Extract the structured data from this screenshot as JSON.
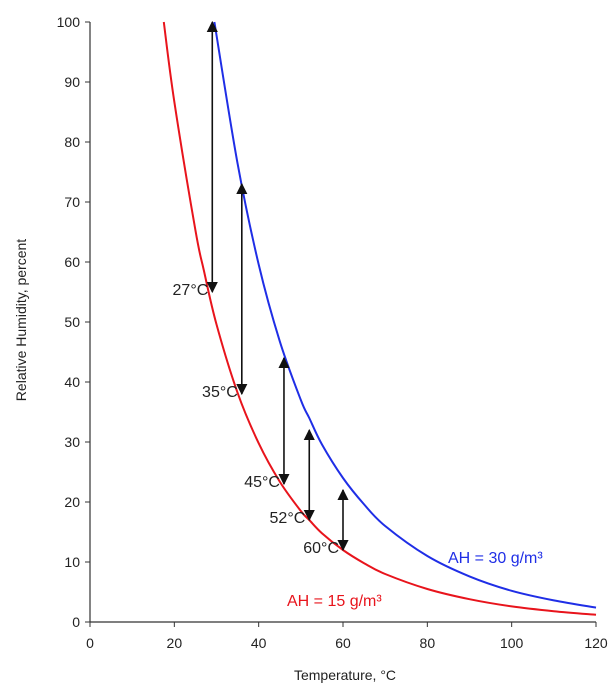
{
  "chart_data": {
    "type": "line",
    "title": "",
    "xlabel": "Temperature, °C",
    "ylabel": "Relative Humidity, percent",
    "xlim": [
      0,
      120
    ],
    "ylim": [
      0,
      100
    ],
    "xticks": [
      "0",
      "20",
      "40",
      "60",
      "80",
      "100",
      "120"
    ],
    "yticks": [
      "0",
      "10",
      "20",
      "30",
      "40",
      "50",
      "60",
      "70",
      "80",
      "90",
      "100"
    ],
    "grid": false,
    "series": [
      {
        "name": "AH = 15 g/m³",
        "color": "#e8141c",
        "x": [
          17.5,
          20,
          25,
          27,
          30,
          35,
          40,
          45,
          50,
          52,
          55,
          60,
          65,
          70,
          80,
          90,
          100,
          110,
          120
        ],
        "y": [
          100,
          86.7,
          65.3,
          58.6,
          49.6,
          38.2,
          29.8,
          23.4,
          18.5,
          17.0,
          14.8,
          12.0,
          9.8,
          8.0,
          5.5,
          3.8,
          2.6,
          1.8,
          1.2
        ]
      },
      {
        "name": "AH = 30 g/m³",
        "color": "#1f2ee6",
        "x": [
          29.5,
          35,
          40,
          45,
          50,
          52,
          55,
          60,
          65,
          70,
          80,
          90,
          100,
          110,
          120
        ],
        "y": [
          100,
          76.4,
          59.6,
          46.8,
          37.0,
          34.0,
          29.6,
          24.0,
          19.6,
          16.0,
          11.0,
          7.6,
          5.2,
          3.6,
          2.4
        ]
      }
    ],
    "annotations": [
      {
        "label": "27°C",
        "x": 29,
        "y_low": 55,
        "y_high": 100
      },
      {
        "label": "35°C",
        "x": 36,
        "y_low": 38,
        "y_high": 73
      },
      {
        "label": "45°C",
        "x": 46,
        "y_low": 23,
        "y_high": 44
      },
      {
        "label": "52°C",
        "x": 52,
        "y_low": 17,
        "y_high": 32
      },
      {
        "label": "60°C",
        "x": 60,
        "y_low": 12,
        "y_high": 22
      }
    ],
    "series_labels": {
      "red": "AH = 15 g/m³",
      "blue": "AH = 30 g/m³"
    }
  }
}
